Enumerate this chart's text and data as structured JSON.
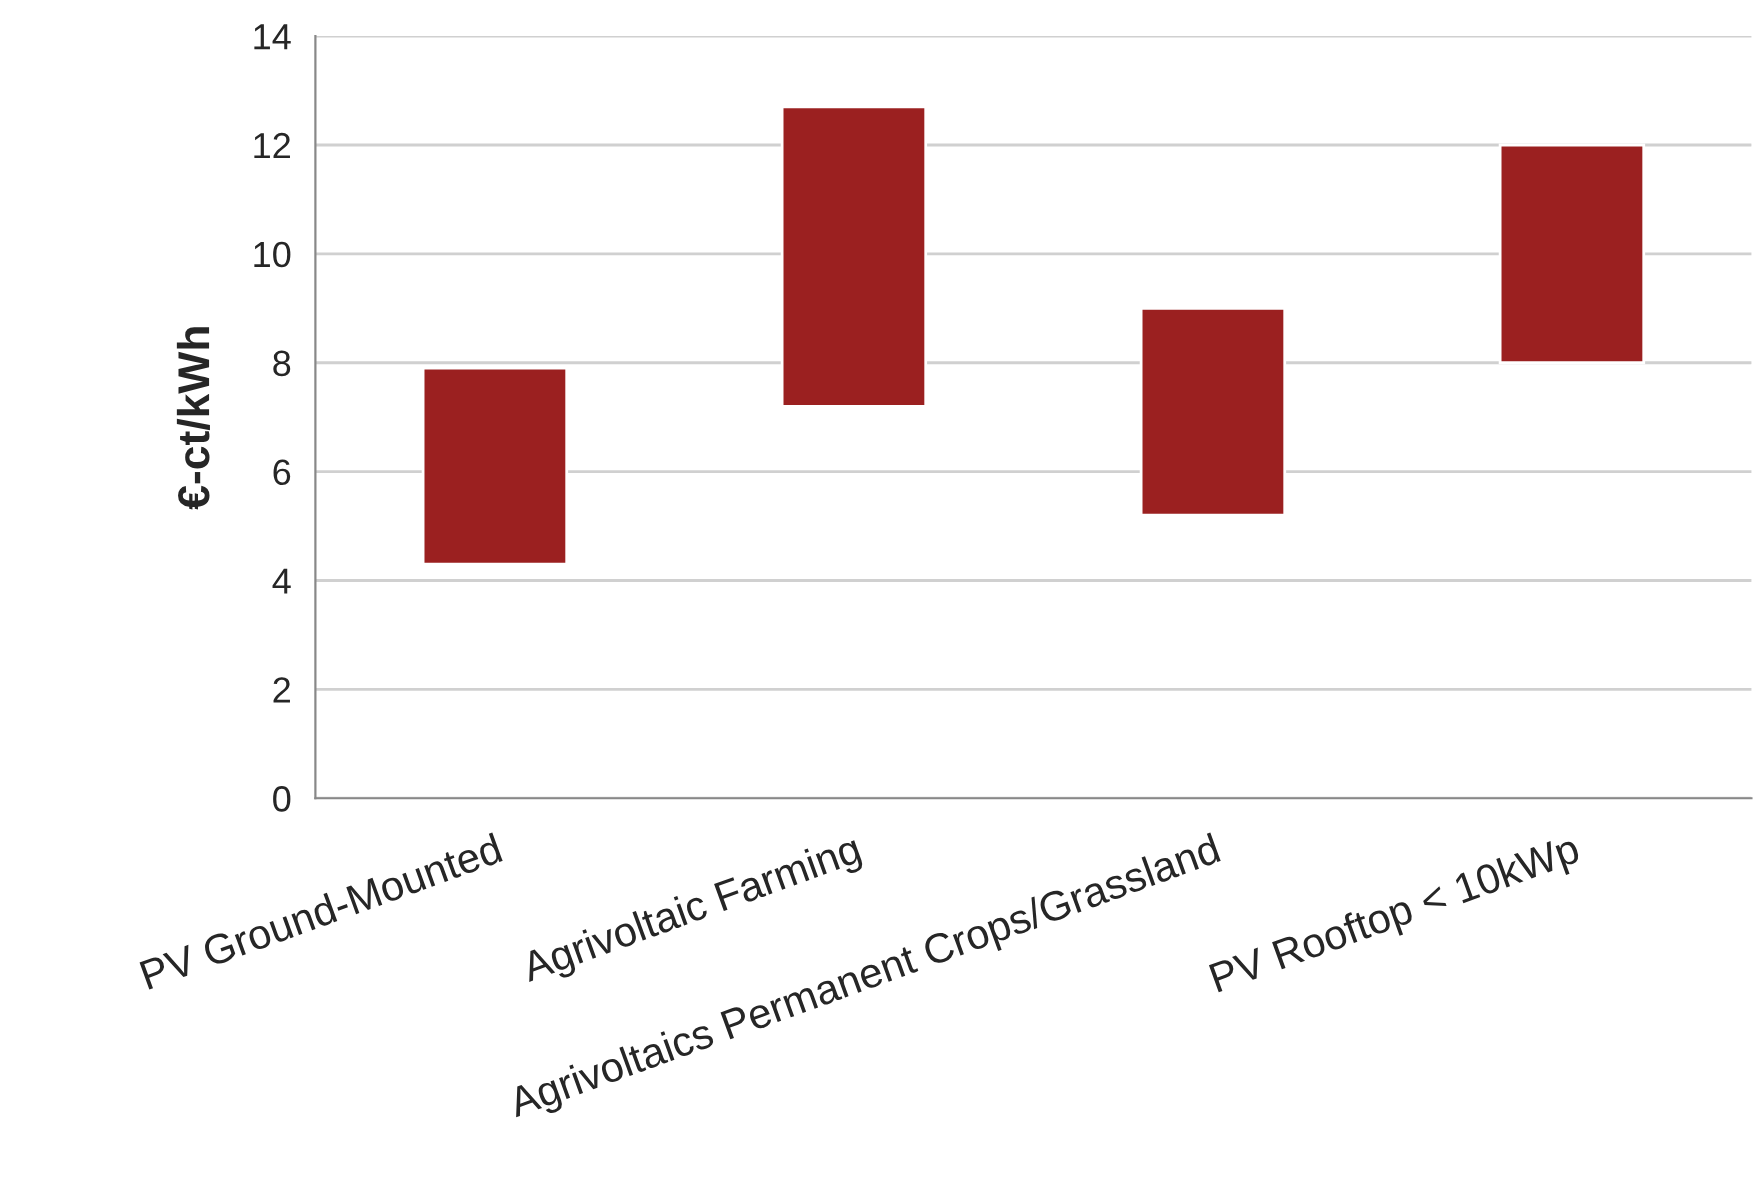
{
  "chart_data": {
    "type": "bar",
    "ylabel": "€-ct/kWh",
    "categories": [
      "PV Ground-Mounted",
      "Agrivoltaic Farming",
      "Agrivoltaics Permanent Crops/Grassland",
      "PV Rooftop < 10kWp"
    ],
    "base": [
      4.3,
      7.2,
      5.2,
      8.0
    ],
    "values": [
      3.6,
      5.5,
      3.8,
      4.0
    ],
    "color": "#9b2020",
    "ylim": [
      0,
      14
    ],
    "yticks": [
      0,
      2,
      4,
      6,
      8,
      10,
      12,
      14
    ],
    "grid": "y"
  }
}
